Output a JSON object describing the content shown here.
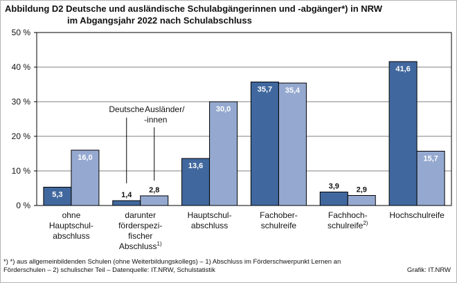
{
  "title": {
    "line1": "Abbildung D2  Deutsche und ausländische Schulabgängerinnen und -abgänger*) in NRW",
    "line2": "im Abgangsjahr 2022 nach Schulabschluss"
  },
  "footnote": {
    "line1": "*) *) aus allgemeinbildenden  Schulen  (ohne Weiterbildungskollegs)  – 1) Abschluss im Förderschwerpunkt Lernen an",
    "line2": "Förderschulen – 2) schulischer Teil – Datenquelle:  IT.NRW,  Schulstatistik"
  },
  "source": "Grafik: IT.NRW",
  "colors": {
    "deutsche": "#41689e",
    "auslaender": "#95a9d0",
    "grid": "#000000"
  },
  "chart_data": {
    "type": "bar",
    "ylim": [
      0,
      50
    ],
    "yticks": [
      "0 %",
      "10 %",
      "20 %",
      "30 %",
      "40 %",
      "50 %"
    ],
    "categories": [
      [
        "ohne",
        "Hauptschul-",
        "abschluss"
      ],
      [
        "darunter",
        "förderspezi-",
        "fischer",
        "Abschluss"
      ],
      [
        "Hauptschul-",
        "abschluss"
      ],
      [
        "Fachober-",
        "schulreife"
      ],
      [
        "Fachhoch-",
        "schulreife"
      ],
      [
        "Hochschulreife"
      ]
    ],
    "category_superscripts": [
      "",
      "1)",
      "",
      "",
      "2)",
      ""
    ],
    "series": [
      {
        "name": "Deutsche",
        "values": [
          5.3,
          1.4,
          13.6,
          35.7,
          3.9,
          41.6
        ],
        "labels": [
          "5,3",
          "1,4",
          "13,6",
          "35,7",
          "3,9",
          "41,6"
        ]
      },
      {
        "name": "Ausländer/ -innen",
        "values": [
          16.0,
          2.8,
          30.0,
          35.4,
          2.9,
          15.7
        ],
        "labels": [
          "16,0",
          "2,8",
          "30,0",
          "35,4",
          "2,9",
          "15,7"
        ]
      }
    ],
    "legend_labels": {
      "deutsche": "Deutsche",
      "auslaender_line1": "Ausländer/",
      "auslaender_line2": "-innen"
    }
  }
}
